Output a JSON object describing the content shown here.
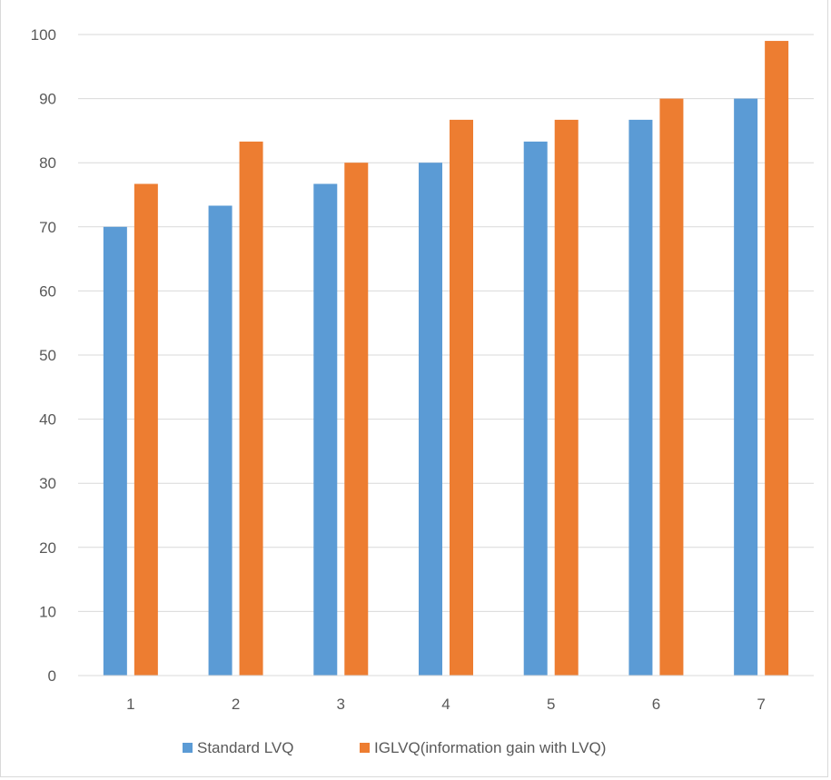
{
  "chart_data": {
    "type": "bar",
    "title": "",
    "xlabel": "",
    "ylabel": "",
    "categories": [
      "1",
      "2",
      "3",
      "4",
      "5",
      "6",
      "7"
    ],
    "series": [
      {
        "name": "Standard LVQ",
        "color": "#5b9bd5",
        "values": [
          70,
          73.3,
          76.7,
          80,
          83.3,
          86.7,
          90
        ]
      },
      {
        "name": "IGLVQ(information gain with LVQ)",
        "color": "#ed7d31",
        "values": [
          76.7,
          83.3,
          80,
          86.7,
          86.7,
          90,
          99
        ]
      }
    ],
    "ylim": [
      0,
      100
    ],
    "yticks": [
      0,
      10,
      20,
      30,
      40,
      50,
      60,
      70,
      80,
      90,
      100
    ],
    "grid": true,
    "legend_position": "bottom"
  }
}
